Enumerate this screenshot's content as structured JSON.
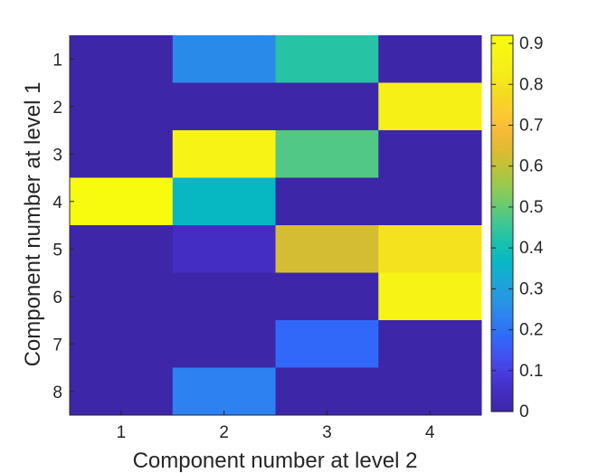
{
  "chart_data": {
    "type": "heatmap",
    "x": [
      1,
      2,
      3,
      4
    ],
    "y": [
      1,
      2,
      3,
      4,
      5,
      6,
      7,
      8
    ],
    "xlabel": "Component number at level 2",
    "ylabel": "Component number at level 1",
    "values": [
      [
        0.0,
        0.25,
        0.43,
        0.0
      ],
      [
        0.0,
        0.0,
        0.0,
        0.85
      ],
      [
        0.0,
        0.88,
        0.48,
        0.0
      ],
      [
        0.92,
        0.37,
        0.0,
        0.0
      ],
      [
        0.0,
        0.05,
        0.63,
        0.8
      ],
      [
        0.0,
        0.0,
        0.0,
        0.88
      ],
      [
        0.0,
        0.0,
        0.18,
        0.0
      ],
      [
        0.0,
        0.23,
        0.0,
        0.0
      ]
    ],
    "colorbar": {
      "min": 0,
      "max": 0.92,
      "ticks": [
        0,
        0.1,
        0.2,
        0.3,
        0.4,
        0.5,
        0.6,
        0.7,
        0.8,
        0.9
      ],
      "tick_labels": [
        "0",
        "0.1",
        "0.2",
        "0.3",
        "0.4",
        "0.5",
        "0.6",
        "0.7",
        "0.8",
        "0.9"
      ],
      "colormap": "parula"
    },
    "legend": "none",
    "grid": false
  }
}
